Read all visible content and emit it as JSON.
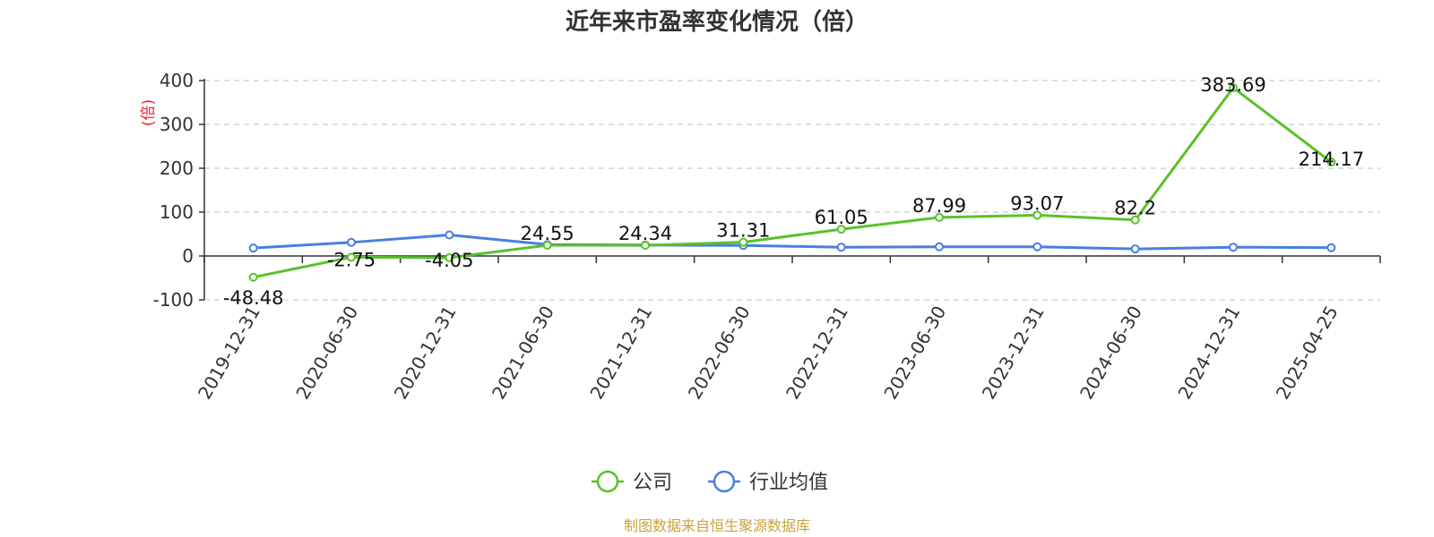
{
  "chart_data": {
    "type": "line",
    "title": "近年来市盈率变化情况（倍）",
    "ylabel": "(倍)",
    "xlabel": "",
    "ylim": [
      -100,
      400
    ],
    "yticks": [
      -100,
      0,
      100,
      200,
      300,
      400
    ],
    "grid": true,
    "legend_position": "bottom",
    "categories": [
      "2019-12-31",
      "2020-06-30",
      "2020-12-31",
      "2021-06-30",
      "2021-12-31",
      "2022-06-30",
      "2022-12-31",
      "2023-06-30",
      "2023-12-31",
      "2024-06-30",
      "2024-12-31",
      "2025-04-25"
    ],
    "series": [
      {
        "name": "公司",
        "color": "#5ac12b",
        "values": [
          -48.48,
          -2.75,
          -4.05,
          24.55,
          24.34,
          31.31,
          61.05,
          87.99,
          93.07,
          82.2,
          383.69,
          214.17
        ],
        "labels": [
          "-48.48",
          "-2.75",
          "-4.05",
          "24.55",
          "24.34",
          "31.31",
          "61.05",
          "87.99",
          "93.07",
          "82.2",
          "383.69",
          "214.17"
        ]
      },
      {
        "name": "行业均值",
        "color": "#4a7fe0",
        "values": [
          18,
          31,
          48,
          26,
          25,
          24,
          20,
          21,
          21,
          16,
          20,
          19
        ]
      }
    ],
    "source": "制图数据来自恒生聚源数据库"
  }
}
